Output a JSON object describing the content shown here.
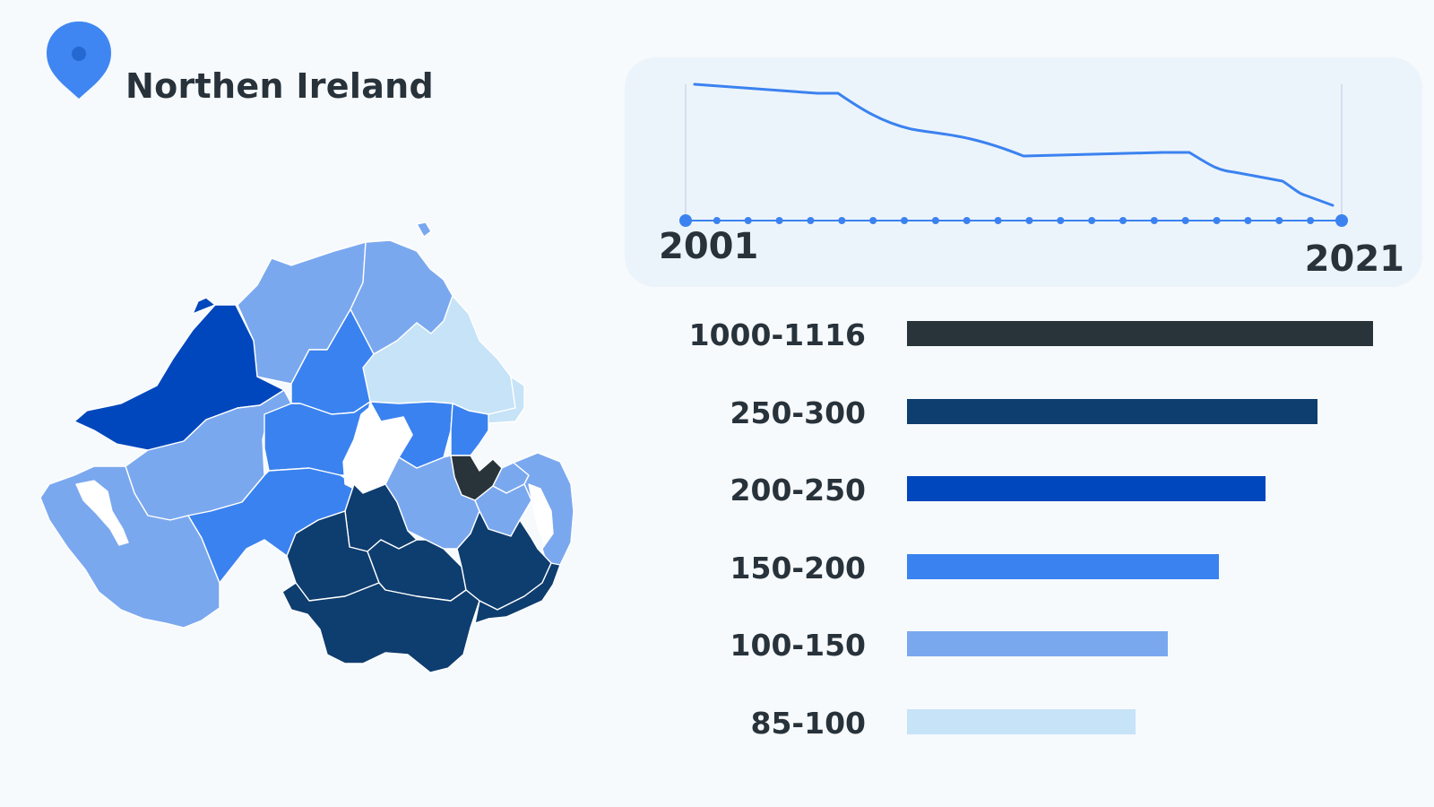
{
  "header": {
    "title": "Northen Ireland",
    "pin_icon": "map-pin-icon",
    "pin_color": "#3f86f2"
  },
  "timeline": {
    "start_label": "2001",
    "end_label": "2021",
    "line_color": "#3b82f0",
    "points": 22
  },
  "legend": {
    "items": [
      {
        "label": "1000-1116",
        "color": "#29333a",
        "relative_length": 1.0
      },
      {
        "label": "250-300",
        "color": "#0e3d6f",
        "relative_length": 0.88
      },
      {
        "label": "200-250",
        "color": "#0047bd",
        "relative_length": 0.77
      },
      {
        "label": "150-200",
        "color": "#3a82f0",
        "relative_length": 0.67
      },
      {
        "label": "100-150",
        "color": "#7aa8ef",
        "relative_length": 0.56
      },
      {
        "label": "85-100",
        "color": "#c6e3f7",
        "relative_length": 0.49
      }
    ]
  },
  "map": {
    "regions_legend_colors": [
      "#29333a",
      "#0e3d6f",
      "#0047bd",
      "#3a82f0",
      "#7aa8ef",
      "#c6e3f7"
    ]
  }
}
